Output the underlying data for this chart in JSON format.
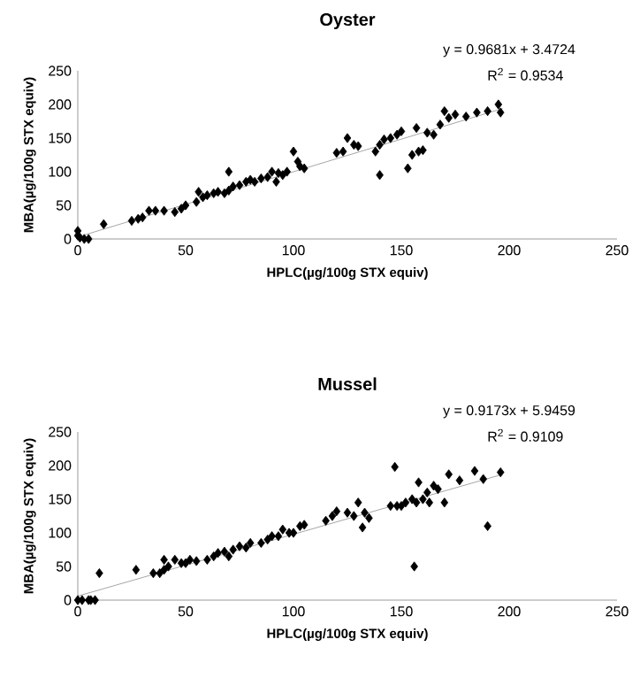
{
  "chart_data": [
    {
      "type": "scatter",
      "title": "Oyster",
      "xlabel": "HPLC(µg/100g STX equiv)",
      "ylabel": "MBA(µg/100g STX equiv)",
      "xlim": [
        0,
        250
      ],
      "ylim": [
        0,
        250
      ],
      "xticks": [
        0,
        50,
        100,
        150,
        200,
        250
      ],
      "yticks": [
        0,
        50,
        100,
        150,
        200,
        250
      ],
      "grid": false,
      "annotations": [
        "y = 0.9681x + 3.4724",
        "R$^{2}$ = 0.9534"
      ],
      "series": [
        {
          "marker": "diamond",
          "color": "#000000",
          "x": [
            0,
            0,
            1,
            3,
            5,
            12,
            25,
            28,
            30,
            33,
            36,
            40,
            45,
            48,
            50,
            55,
            56,
            58,
            60,
            63,
            65,
            68,
            70,
            70,
            72,
            75,
            78,
            80,
            82,
            85,
            88,
            90,
            92,
            93,
            95,
            97,
            100,
            102,
            103,
            105,
            120,
            123,
            125,
            128,
            130,
            138,
            140,
            140,
            142,
            145,
            148,
            150,
            153,
            155,
            157,
            158,
            160,
            162,
            165,
            168,
            170,
            172,
            175,
            180,
            185,
            190,
            195,
            196
          ],
          "values": [
            12,
            5,
            2,
            0,
            0,
            22,
            27,
            30,
            32,
            42,
            42,
            42,
            40,
            45,
            50,
            55,
            70,
            62,
            65,
            68,
            70,
            68,
            100,
            72,
            78,
            80,
            85,
            88,
            85,
            90,
            92,
            100,
            85,
            98,
            95,
            100,
            130,
            115,
            108,
            105,
            128,
            130,
            150,
            140,
            138,
            130,
            95,
            140,
            148,
            150,
            155,
            160,
            105,
            125,
            165,
            130,
            132,
            158,
            155,
            170,
            190,
            180,
            185,
            182,
            188,
            190,
            200,
            188
          ]
        },
        {
          "type": "line",
          "marker": "none",
          "color": "#a6a6a6",
          "x": [
            0,
            197
          ],
          "values": [
            3,
            194
          ]
        }
      ]
    },
    {
      "type": "scatter",
      "title": "Mussel",
      "xlabel": "HPLC(µg/100g STX equiv)",
      "ylabel": "MBA(µg/100g STX equiv)",
      "xlim": [
        0,
        250
      ],
      "ylim": [
        0,
        250
      ],
      "xticks": [
        0,
        50,
        100,
        150,
        200,
        250
      ],
      "yticks": [
        0,
        50,
        100,
        150,
        200,
        250
      ],
      "grid": false,
      "annotations": [
        "y = 0.9173x + 5.9459",
        "R$^{2}$ = 0.9109"
      ],
      "series": [
        {
          "marker": "diamond",
          "color": "#000000",
          "x": [
            0,
            2,
            5,
            6,
            8,
            10,
            27,
            35,
            38,
            40,
            40,
            42,
            45,
            48,
            50,
            52,
            55,
            60,
            63,
            65,
            68,
            70,
            72,
            75,
            78,
            80,
            85,
            88,
            90,
            93,
            95,
            98,
            100,
            103,
            105,
            115,
            118,
            120,
            125,
            128,
            130,
            132,
            133,
            135,
            145,
            147,
            148,
            150,
            152,
            155,
            156,
            157,
            158,
            160,
            162,
            163,
            165,
            167,
            170,
            172,
            177,
            184,
            188,
            190,
            196
          ],
          "values": [
            0,
            0,
            0,
            0,
            0,
            40,
            45,
            40,
            40,
            45,
            60,
            50,
            60,
            55,
            55,
            60,
            58,
            60,
            65,
            70,
            72,
            65,
            75,
            80,
            78,
            85,
            85,
            90,
            95,
            95,
            105,
            100,
            100,
            110,
            112,
            118,
            125,
            132,
            130,
            125,
            145,
            108,
            130,
            122,
            140,
            198,
            140,
            140,
            145,
            150,
            50,
            145,
            175,
            150,
            160,
            145,
            170,
            165,
            145,
            187,
            178,
            192,
            180,
            110,
            190
          ]
        },
        {
          "type": "line",
          "marker": "none",
          "color": "#a6a6a6",
          "x": [
            0,
            197
          ],
          "values": [
            6,
            187
          ]
        }
      ]
    }
  ]
}
